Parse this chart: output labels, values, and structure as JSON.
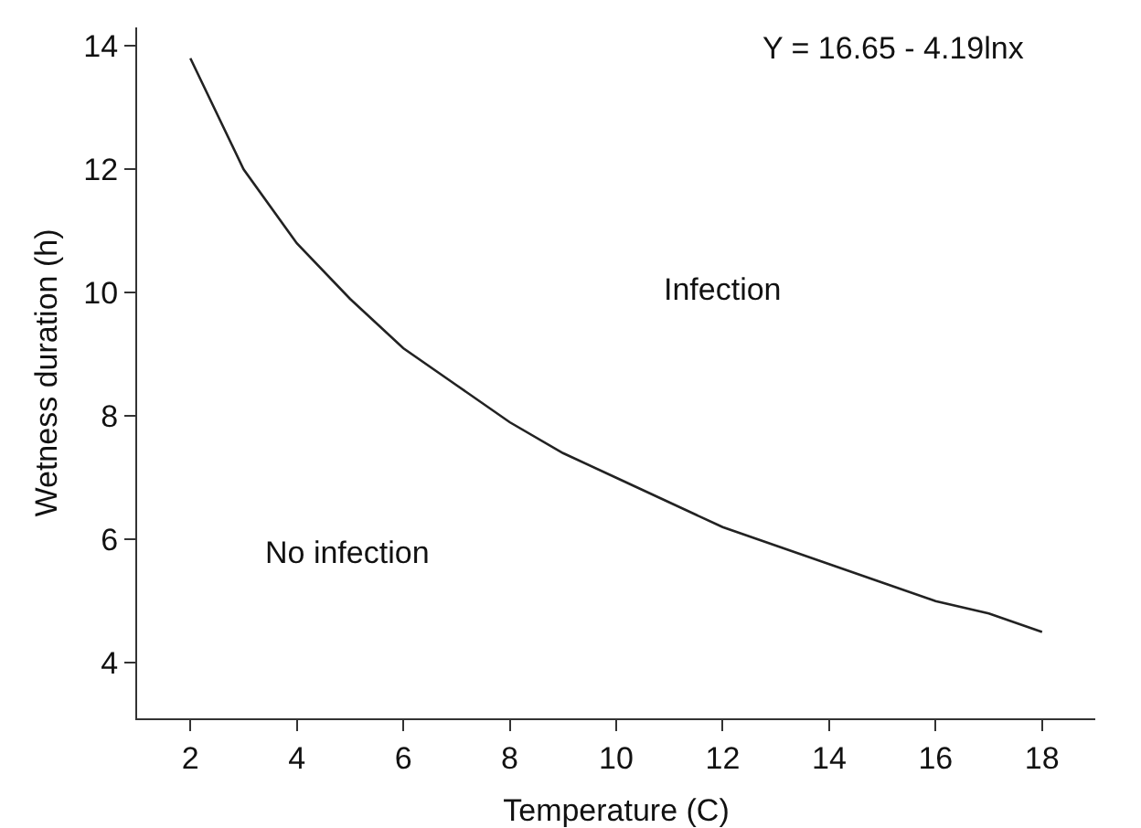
{
  "chart_data": {
    "type": "line",
    "xlabel": "Temperature (C)",
    "ylabel": "Wetness duration (h)",
    "x": [
      2,
      3,
      4,
      5,
      6,
      7,
      8,
      9,
      10,
      11,
      12,
      13,
      14,
      15,
      16,
      17,
      18
    ],
    "series": [
      {
        "color": "#222222",
        "values": [
          13.8,
          12.0,
          10.8,
          9.9,
          9.1,
          8.5,
          7.9,
          7.4,
          7.0,
          6.6,
          6.2,
          5.9,
          5.6,
          5.3,
          5.0,
          4.8,
          4.5
        ]
      }
    ],
    "xlim": [
      1,
      19
    ],
    "xticks": [
      2,
      4,
      6,
      8,
      10,
      12,
      14,
      16,
      18
    ],
    "ylim": [
      3.1,
      14.3
    ],
    "yticks": [
      4,
      6,
      8,
      10,
      12,
      14
    ],
    "grid": false,
    "marker": "none",
    "line_style": "solid",
    "annotations": [
      "Y = 16.65 - 4.19lnx",
      "Infection",
      "No infection"
    ]
  }
}
